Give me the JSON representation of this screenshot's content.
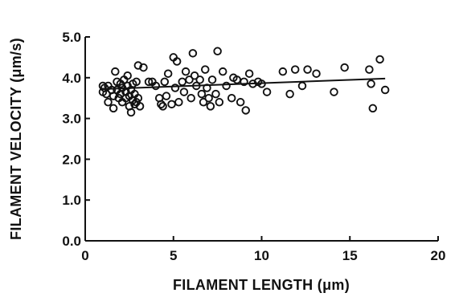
{
  "chart_data": {
    "type": "scatter",
    "title": "",
    "xlabel": "FILAMENT LENGTH (μm)",
    "ylabel": "FILAMENT VELOCITY (μm/s)",
    "xlim": [
      0,
      20
    ],
    "ylim": [
      0,
      5.0
    ],
    "x_ticks": [
      0,
      5,
      10,
      15,
      20
    ],
    "x_tick_labels": [
      "0",
      "5",
      "10",
      "15",
      "20"
    ],
    "y_ticks": [
      0,
      1,
      2,
      3,
      4,
      5
    ],
    "y_tick_labels": [
      "0.0",
      "1.0",
      "2.0",
      "3.0",
      "4.0",
      "5.0"
    ],
    "grid": false,
    "legend": "none",
    "marker": "open-circle",
    "colors": {
      "marker": "#111111",
      "line": "#111111",
      "axis": "#111111"
    },
    "points": [
      [
        1.0,
        3.8
      ],
      [
        1.0,
        3.65
      ],
      [
        1.1,
        3.75
      ],
      [
        1.2,
        3.6
      ],
      [
        1.3,
        3.8
      ],
      [
        1.3,
        3.4
      ],
      [
        1.5,
        3.7
      ],
      [
        1.6,
        3.55
      ],
      [
        1.6,
        3.25
      ],
      [
        1.7,
        4.15
      ],
      [
        1.8,
        3.9
      ],
      [
        1.8,
        3.7
      ],
      [
        1.9,
        3.5
      ],
      [
        2.0,
        3.85
      ],
      [
        2.0,
        3.6
      ],
      [
        2.1,
        3.75
      ],
      [
        2.1,
        3.4
      ],
      [
        2.2,
        3.95
      ],
      [
        2.3,
        3.65
      ],
      [
        2.3,
        3.5
      ],
      [
        2.4,
        4.05
      ],
      [
        2.4,
        3.8
      ],
      [
        2.5,
        3.55
      ],
      [
        2.5,
        3.3
      ],
      [
        2.6,
        3.7
      ],
      [
        2.6,
        3.15
      ],
      [
        2.7,
        3.85
      ],
      [
        2.7,
        3.45
      ],
      [
        2.8,
        3.6
      ],
      [
        2.8,
        3.35
      ],
      [
        2.9,
        3.9
      ],
      [
        2.9,
        3.4
      ],
      [
        3.0,
        4.3
      ],
      [
        3.0,
        3.5
      ],
      [
        3.1,
        3.3
      ],
      [
        3.3,
        4.25
      ],
      [
        3.6,
        3.9
      ],
      [
        3.8,
        3.9
      ],
      [
        4.0,
        3.8
      ],
      [
        4.2,
        3.5
      ],
      [
        4.3,
        3.35
      ],
      [
        4.4,
        3.3
      ],
      [
        4.5,
        3.9
      ],
      [
        4.6,
        3.55
      ],
      [
        4.7,
        4.1
      ],
      [
        4.9,
        3.35
      ],
      [
        5.0,
        4.5
      ],
      [
        5.1,
        3.75
      ],
      [
        5.2,
        4.4
      ],
      [
        5.3,
        3.4
      ],
      [
        5.5,
        3.9
      ],
      [
        5.6,
        3.65
      ],
      [
        5.7,
        4.15
      ],
      [
        5.9,
        3.95
      ],
      [
        6.0,
        3.5
      ],
      [
        6.1,
        4.6
      ],
      [
        6.2,
        4.05
      ],
      [
        6.3,
        3.8
      ],
      [
        6.5,
        3.95
      ],
      [
        6.6,
        3.6
      ],
      [
        6.7,
        3.4
      ],
      [
        6.8,
        4.2
      ],
      [
        6.9,
        3.75
      ],
      [
        7.0,
        3.5
      ],
      [
        7.1,
        3.3
      ],
      [
        7.2,
        3.95
      ],
      [
        7.4,
        3.6
      ],
      [
        7.5,
        4.65
      ],
      [
        7.6,
        3.4
      ],
      [
        7.8,
        4.15
      ],
      [
        8.0,
        3.8
      ],
      [
        8.3,
        3.5
      ],
      [
        8.4,
        4.0
      ],
      [
        8.6,
        3.95
      ],
      [
        8.8,
        3.4
      ],
      [
        9.0,
        3.9
      ],
      [
        9.1,
        3.2
      ],
      [
        9.3,
        4.1
      ],
      [
        9.5,
        3.85
      ],
      [
        9.8,
        3.9
      ],
      [
        10.0,
        3.85
      ],
      [
        10.3,
        3.65
      ],
      [
        11.2,
        4.15
      ],
      [
        11.6,
        3.6
      ],
      [
        11.9,
        4.2
      ],
      [
        12.3,
        3.8
      ],
      [
        12.6,
        4.2
      ],
      [
        13.1,
        4.1
      ],
      [
        14.1,
        3.65
      ],
      [
        14.7,
        4.25
      ],
      [
        16.1,
        4.2
      ],
      [
        16.2,
        3.85
      ],
      [
        16.3,
        3.25
      ],
      [
        16.7,
        4.45
      ],
      [
        17.0,
        3.7
      ]
    ],
    "regression_line": {
      "x": [
        1.0,
        17.0
      ],
      "y": [
        3.72,
        3.98
      ]
    }
  }
}
